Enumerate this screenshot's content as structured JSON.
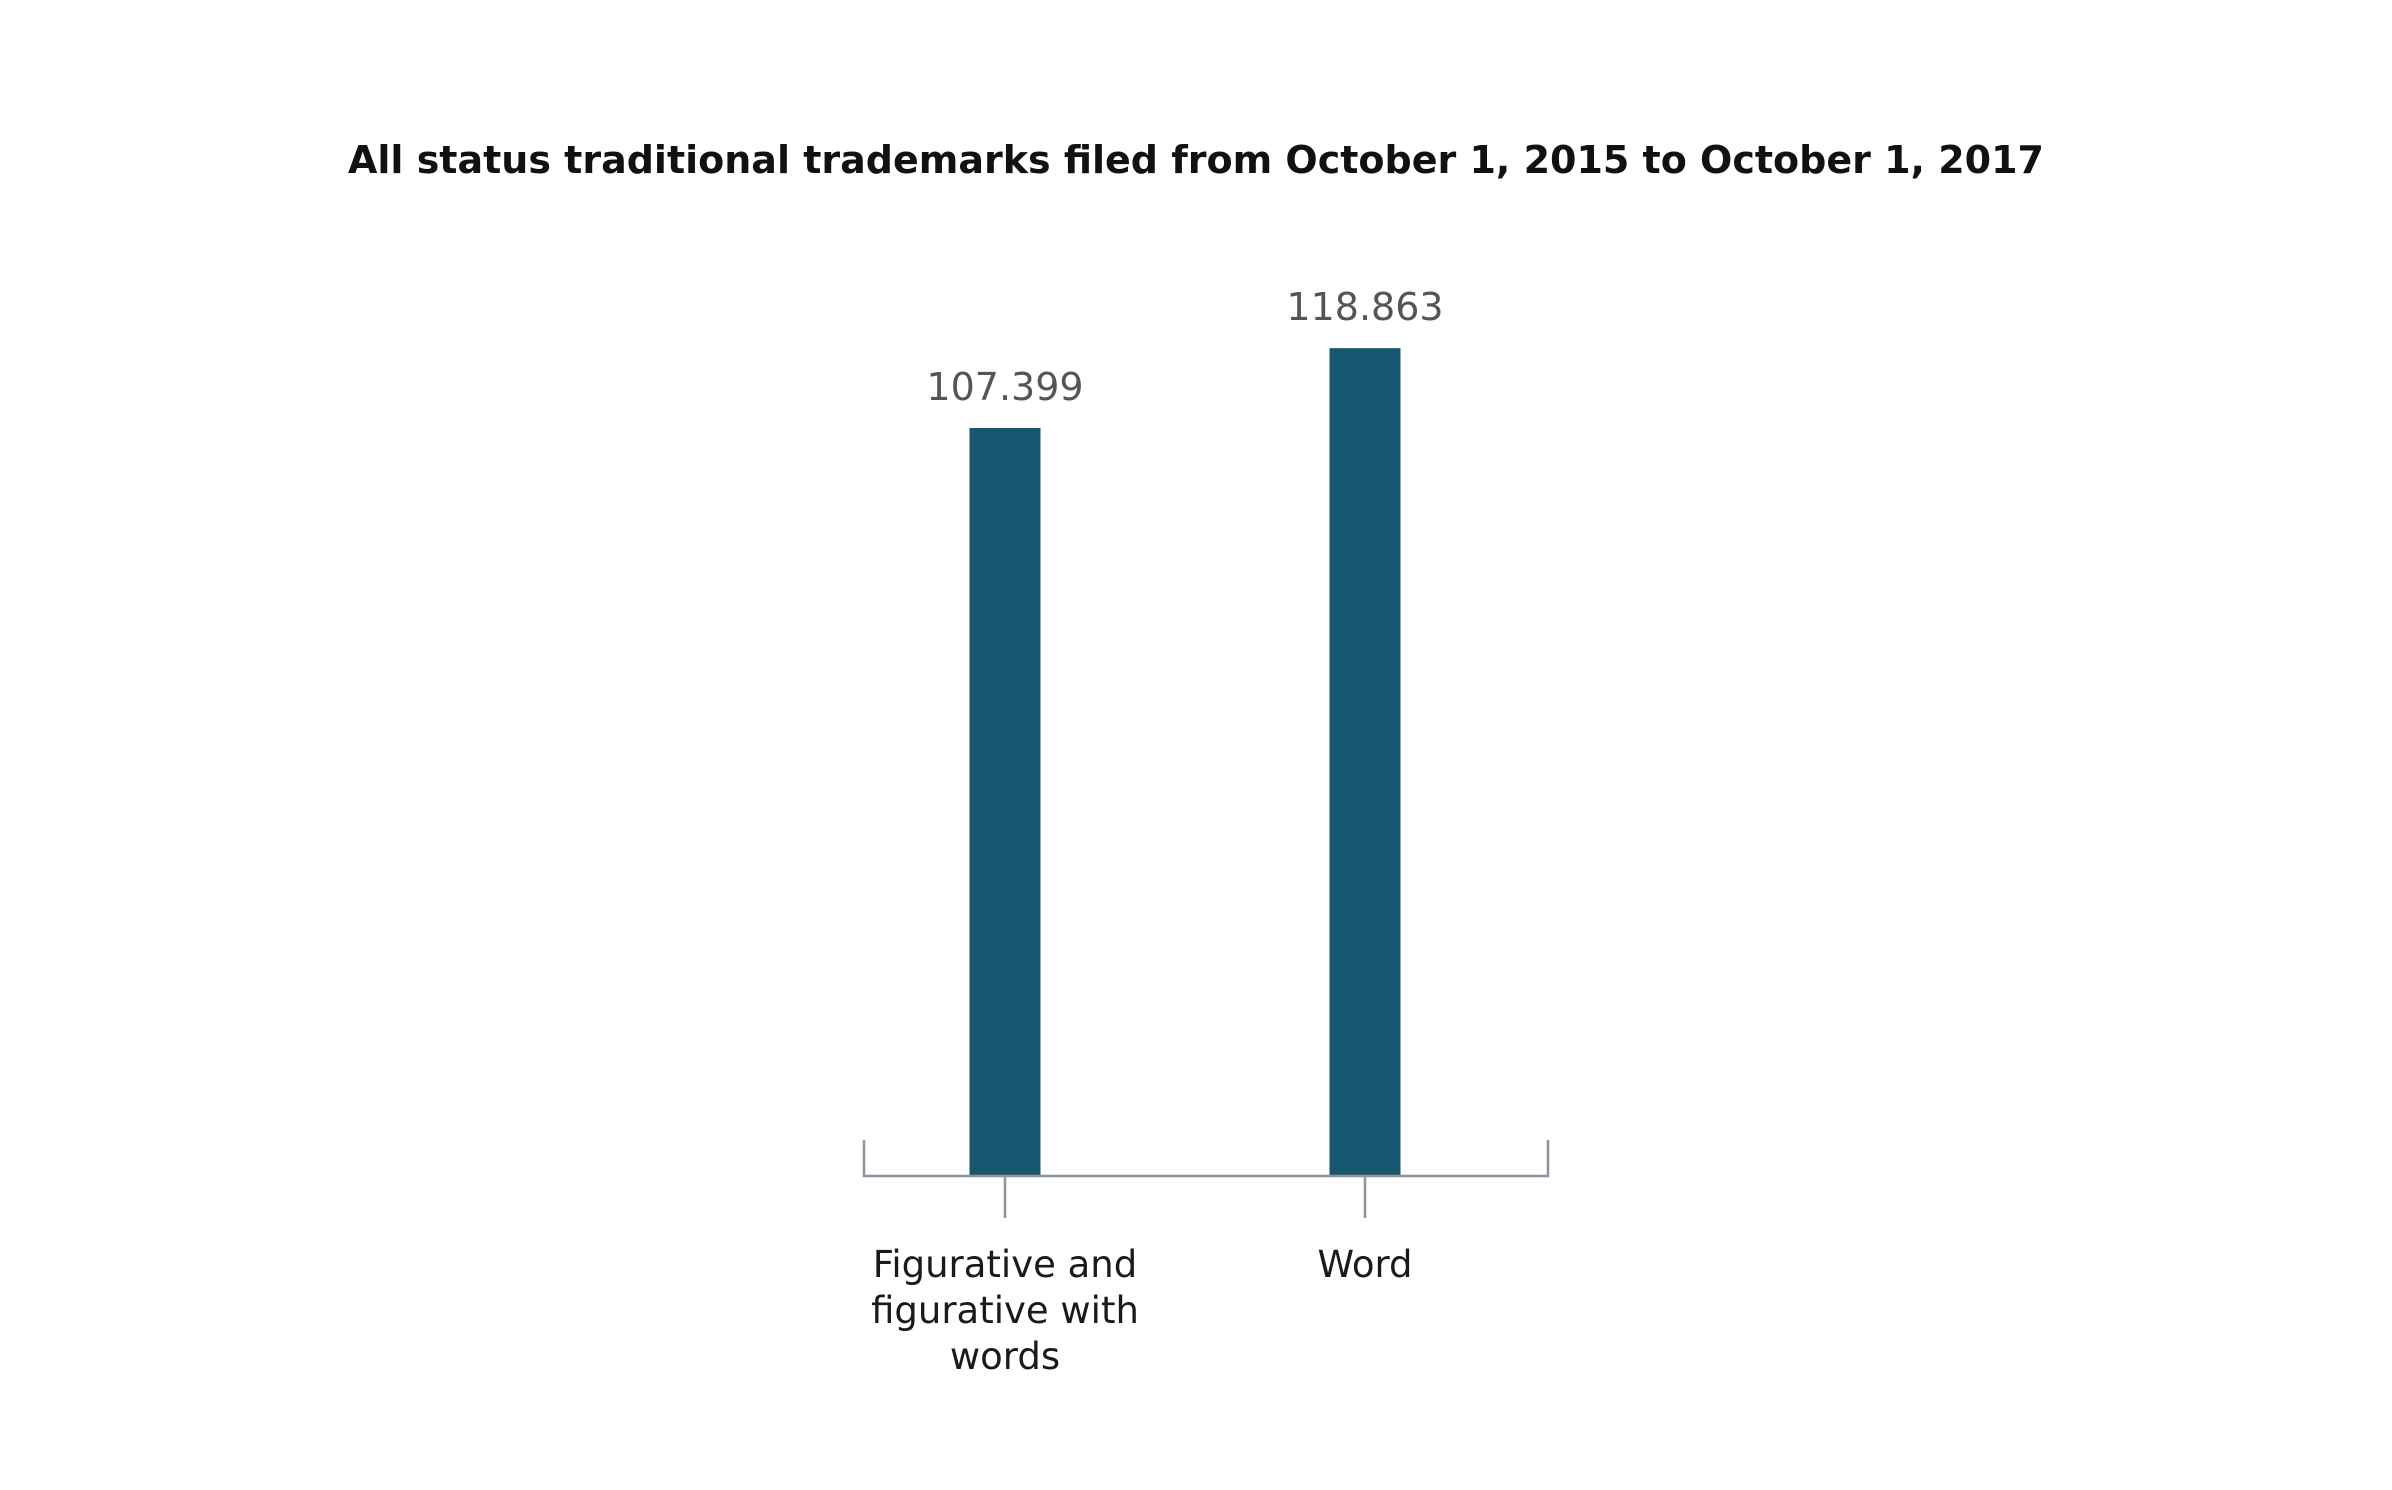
{
  "chart_data": {
    "type": "bar",
    "title": "All status traditional trademarks filed from October 1, 2015 to October 1, 2017",
    "categories": [
      [
        "Figurative and",
        "figurative with",
        "words"
      ],
      [
        "Word"
      ]
    ],
    "values": [
      107399,
      118863
    ],
    "value_labels": [
      "107.399",
      "118.863"
    ],
    "xlabel": "",
    "ylabel": "",
    "ylim": [
      0,
      125000
    ],
    "grid": false,
    "legend": "none",
    "colors": {
      "bar": "#17566f",
      "axis": "#8a96a0",
      "title": "#111111",
      "value_label": "#555555",
      "tick_label": "#1a1a1a"
    }
  }
}
